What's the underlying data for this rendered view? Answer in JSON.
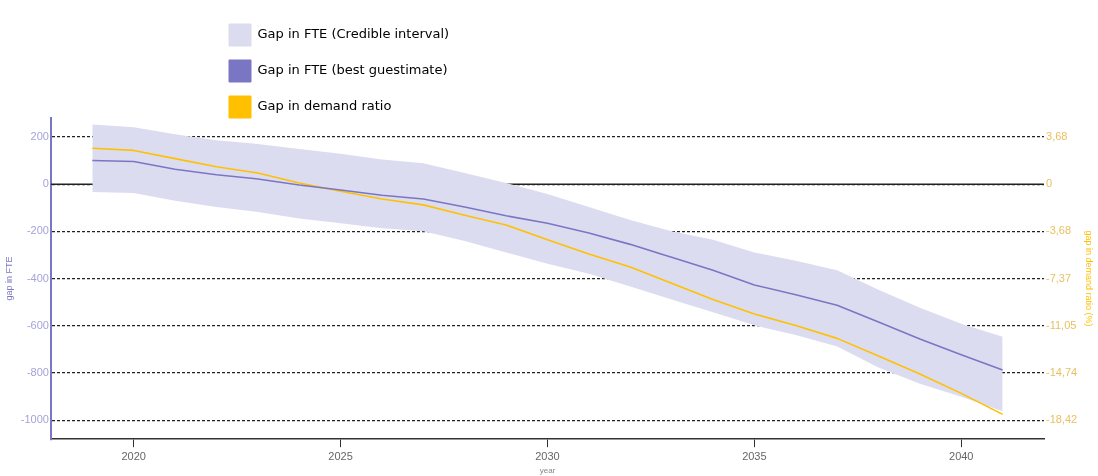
{
  "chart_data": {
    "type": "line",
    "xlabel": "year",
    "ylabel": "gap in FTE",
    "y2label": "gap in demand ratio (%)",
    "x": [
      2019,
      2020,
      2021,
      2022,
      2023,
      2024,
      2025,
      2026,
      2027,
      2028,
      2029,
      2030,
      2031,
      2032,
      2033,
      2034,
      2035,
      2036,
      2037,
      2038,
      2039,
      2040,
      2041
    ],
    "series": [
      {
        "name": "Gap in FTE (Credible interval)",
        "type": "area",
        "color": "#dcdcf0",
        "values": [
          null,
          null,
          null,
          null,
          null,
          null,
          null,
          null,
          null,
          null,
          null,
          null,
          null,
          null,
          null,
          null,
          null,
          null,
          null,
          null,
          null,
          null,
          null
        ],
        "lower": [
          -33,
          -38,
          -70,
          -97,
          -118,
          -145,
          -166,
          -187,
          -200,
          -241,
          -289,
          -337,
          -379,
          -433,
          -488,
          -543,
          -598,
          -639,
          -687,
          -776,
          -845,
          -900,
          -962
        ],
        "upper": [
          252,
          241,
          211,
          186,
          170,
          149,
          129,
          104,
          88,
          47,
          5,
          -42,
          -97,
          -152,
          -200,
          -235,
          -289,
          -324,
          -365,
          -447,
          -523,
          -591,
          -646
        ]
      },
      {
        "name": "Gap in FTE (best guestimate)",
        "type": "line",
        "color": "#7b76c4",
        "values": [
          100,
          96,
          63,
          40,
          22,
          -4,
          -25,
          -47,
          -63,
          -97,
          -134,
          -166,
          -207,
          -255,
          -310,
          -365,
          -427,
          -468,
          -513,
          -584,
          -656,
          -722,
          -787
        ]
      },
      {
        "name": "Gap in demand ratio",
        "type": "line",
        "axis": "y2",
        "color": "#ffc000",
        "values": [
          2.8,
          2.63,
          1.99,
          1.36,
          0.87,
          0.09,
          -0.55,
          -1.16,
          -1.62,
          -2.43,
          -3.19,
          -4.33,
          -5.45,
          -6.47,
          -7.74,
          -8.99,
          -10.13,
          -11.02,
          -12.03,
          -13.41,
          -14.81,
          -16.32,
          -17.96
        ]
      }
    ],
    "xlim": [
      2018,
      2042
    ],
    "xticks": [
      2020,
      2025,
      2030,
      2035,
      2040
    ],
    "ylim": [
      -1080,
      280
    ],
    "yticks": [
      -1000,
      -800,
      -600,
      -400,
      -200,
      0,
      200
    ],
    "y2lim": [
      -19.895,
      5.158
    ],
    "y2ticks": [
      {
        "value": 3.68,
        "label": "3,68"
      },
      {
        "value": 0,
        "label": "0"
      },
      {
        "value": -3.68,
        "label": "-3,68"
      },
      {
        "value": -7.37,
        "label": "-7,37"
      },
      {
        "value": -11.05,
        "label": "-11,05"
      },
      {
        "value": -14.74,
        "label": "-14,74"
      },
      {
        "value": -18.42,
        "label": "-18,42"
      }
    ],
    "ref_lines": [
      {
        "axis": "y",
        "value": 0,
        "color": "#222222",
        "line_style": "solid"
      }
    ],
    "grid": "y",
    "legend": "top",
    "marker": "none",
    "line_style": "solid"
  }
}
